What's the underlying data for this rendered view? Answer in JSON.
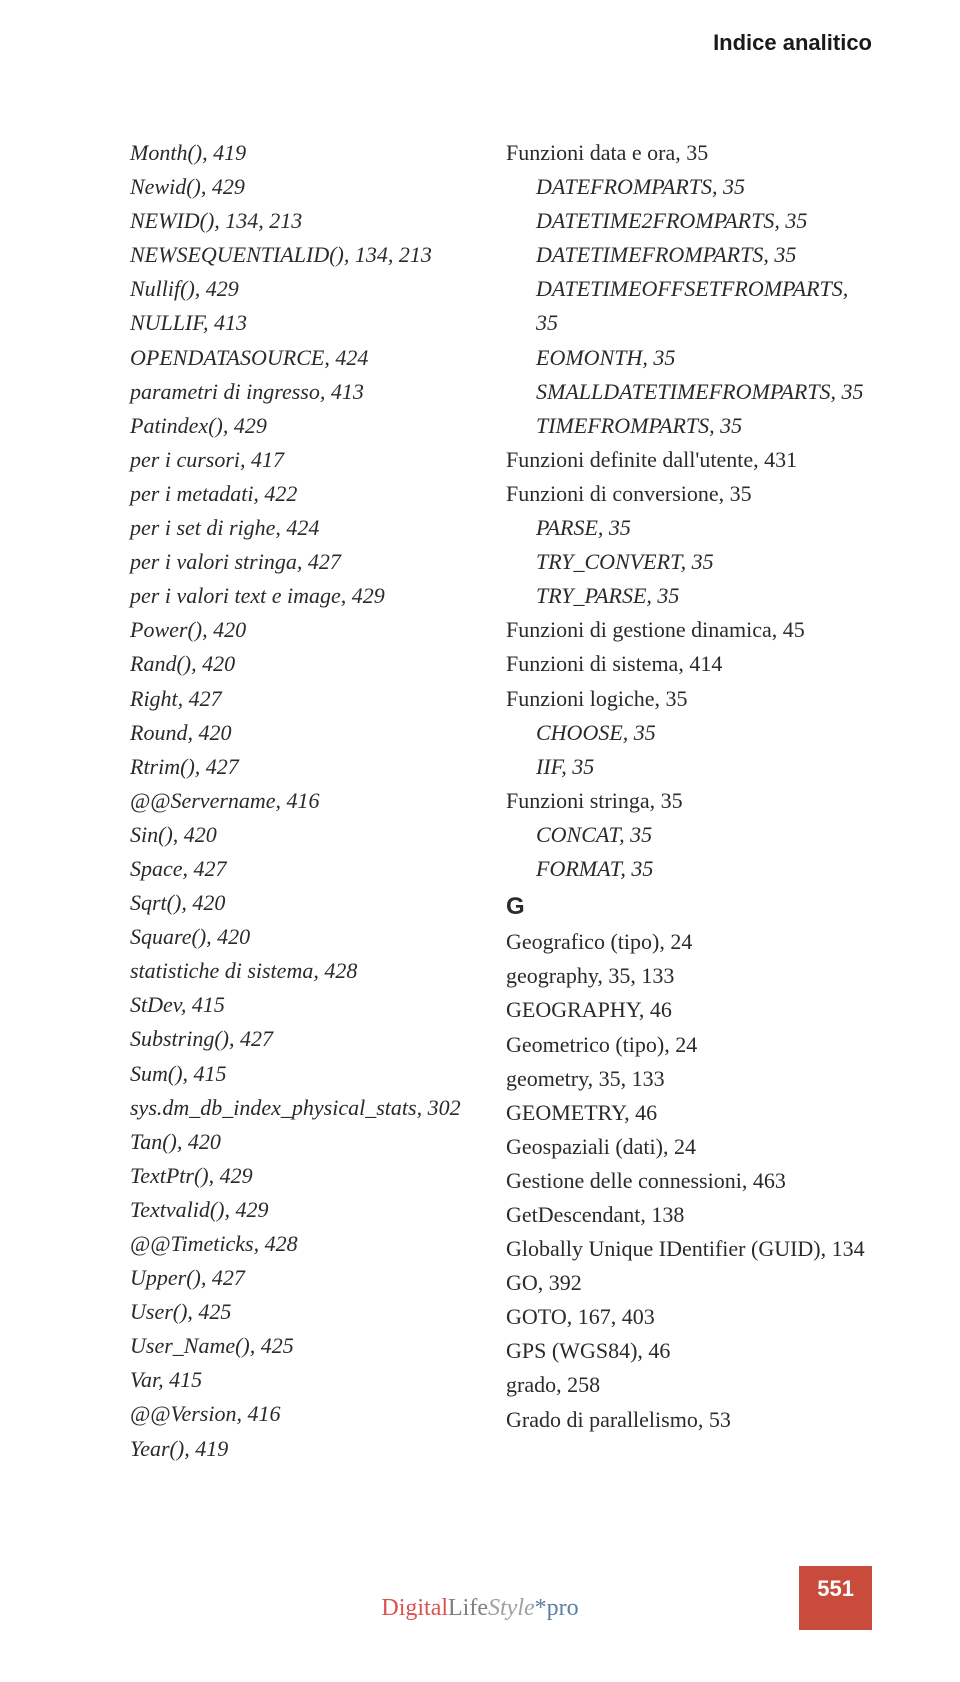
{
  "header": {
    "title": "Indice analitico"
  },
  "columns": {
    "left": [
      {
        "text": "Month(), 419",
        "indent": 1,
        "italic": true
      },
      {
        "text": "Newid(), 429",
        "indent": 1,
        "italic": true
      },
      {
        "text": "NEWID(), 134, 213",
        "indent": 1,
        "italic": true
      },
      {
        "text": "NEWSEQUENTIALID(), 134, 213",
        "indent": 1,
        "italic": true
      },
      {
        "text": "Nullif(), 429",
        "indent": 1,
        "italic": true
      },
      {
        "text": "NULLIF, 413",
        "indent": 1,
        "italic": true
      },
      {
        "text": "OPENDATASOURCE, 424",
        "indent": 1,
        "italic": true
      },
      {
        "text": "parametri di ingresso, 413",
        "indent": 1,
        "italic": true
      },
      {
        "text": "Patindex(), 429",
        "indent": 1,
        "italic": true
      },
      {
        "text": "per i cursori, 417",
        "indent": 1,
        "italic": true
      },
      {
        "text": "per i metadati, 422",
        "indent": 1,
        "italic": true
      },
      {
        "text": "per i set di righe, 424",
        "indent": 1,
        "italic": true
      },
      {
        "text": "per i valori stringa, 427",
        "indent": 1,
        "italic": true
      },
      {
        "text": "per i valori text e image, 429",
        "indent": 1,
        "italic": true
      },
      {
        "text": "Power(), 420",
        "indent": 1,
        "italic": true
      },
      {
        "text": "Rand(), 420",
        "indent": 1,
        "italic": true
      },
      {
        "text": "Right, 427",
        "indent": 1,
        "italic": true
      },
      {
        "text": "Round, 420",
        "indent": 1,
        "italic": true
      },
      {
        "text": "Rtrim(), 427",
        "indent": 1,
        "italic": true
      },
      {
        "text": "@@Servername, 416",
        "indent": 1,
        "italic": true
      },
      {
        "text": "Sin(), 420",
        "indent": 1,
        "italic": true
      },
      {
        "text": "Space, 427",
        "indent": 1,
        "italic": true
      },
      {
        "text": "Sqrt(), 420",
        "indent": 1,
        "italic": true
      },
      {
        "text": "Square(), 420",
        "indent": 1,
        "italic": true
      },
      {
        "text": "statistiche di sistema, 428",
        "indent": 1,
        "italic": true
      },
      {
        "text": "StDev, 415",
        "indent": 1,
        "italic": true
      },
      {
        "text": "Substring(), 427",
        "indent": 1,
        "italic": true
      },
      {
        "text": "Sum(), 415",
        "indent": 1,
        "italic": true
      },
      {
        "text": "sys.dm_db_index_physical_stats, 302",
        "indent": 1,
        "italic": true
      },
      {
        "text": "Tan(), 420",
        "indent": 1,
        "italic": true
      },
      {
        "text": "TextPtr(), 429",
        "indent": 1,
        "italic": true
      },
      {
        "text": "Textvalid(), 429",
        "indent": 1,
        "italic": true
      },
      {
        "text": "@@Timeticks, 428",
        "indent": 1,
        "italic": true
      },
      {
        "text": "Upper(), 427",
        "indent": 1,
        "italic": true
      },
      {
        "text": "User(), 425",
        "indent": 1,
        "italic": true
      },
      {
        "text": "User_Name(), 425",
        "indent": 1,
        "italic": true
      },
      {
        "text": "Var, 415",
        "indent": 1,
        "italic": true
      },
      {
        "text": "@@Version, 416",
        "indent": 1,
        "italic": true
      },
      {
        "text": "Year(), 419",
        "indent": 1,
        "italic": true
      }
    ],
    "right": [
      {
        "text": "Funzioni data e ora, 35",
        "indent": 0,
        "italic": false
      },
      {
        "text": "DATEFROMPARTS, 35",
        "indent": 1,
        "italic": true
      },
      {
        "text": "DATETIME2FROMPARTS, 35",
        "indent": 1,
        "italic": true
      },
      {
        "text": "DATETIMEFROMPARTS, 35",
        "indent": 1,
        "italic": true
      },
      {
        "text": "DATETIMEOFFSETFROMPARTS, 35",
        "indent": 1,
        "italic": true
      },
      {
        "text": "EOMONTH, 35",
        "indent": 1,
        "italic": true
      },
      {
        "text": "SMALLDATETIMEFROMPARTS, 35",
        "indent": 1,
        "italic": true
      },
      {
        "text": "TIMEFROMPARTS, 35",
        "indent": 1,
        "italic": true
      },
      {
        "text": "Funzioni definite dall'utente, 431",
        "indent": 0,
        "italic": false
      },
      {
        "text": "Funzioni di conversione, 35",
        "indent": 0,
        "italic": false
      },
      {
        "text": "PARSE, 35",
        "indent": 1,
        "italic": true
      },
      {
        "text": "TRY_CONVERT, 35",
        "indent": 1,
        "italic": true
      },
      {
        "text": "TRY_PARSE, 35",
        "indent": 1,
        "italic": true
      },
      {
        "text": "Funzioni di gestione dinamica, 45",
        "indent": 0,
        "italic": false
      },
      {
        "text": "Funzioni di sistema, 414",
        "indent": 0,
        "italic": false
      },
      {
        "text": "Funzioni logiche, 35",
        "indent": 0,
        "italic": false
      },
      {
        "text": "CHOOSE, 35",
        "indent": 1,
        "italic": true
      },
      {
        "text": "IIF, 35",
        "indent": 1,
        "italic": true
      },
      {
        "text": "Funzioni stringa, 35",
        "indent": 0,
        "italic": false
      },
      {
        "text": "CONCAT, 35",
        "indent": 1,
        "italic": true
      },
      {
        "text": "FORMAT, 35",
        "indent": 1,
        "italic": true
      },
      {
        "text": "G",
        "indent": 0,
        "italic": false,
        "section": true
      },
      {
        "text": "Geografico (tipo), 24",
        "indent": 0,
        "italic": false
      },
      {
        "text": "geography, 35, 133",
        "indent": 0,
        "italic": false
      },
      {
        "text": "GEOGRAPHY, 46",
        "indent": 0,
        "italic": false
      },
      {
        "text": "Geometrico (tipo), 24",
        "indent": 0,
        "italic": false
      },
      {
        "text": "geometry, 35, 133",
        "indent": 0,
        "italic": false
      },
      {
        "text": "GEOMETRY, 46",
        "indent": 0,
        "italic": false
      },
      {
        "text": "Geospaziali (dati), 24",
        "indent": 0,
        "italic": false
      },
      {
        "text": "Gestione delle connessioni, 463",
        "indent": 0,
        "italic": false
      },
      {
        "text": "GetDescendant, 138",
        "indent": 0,
        "italic": false
      },
      {
        "text": "Globally Unique IDentifier (GUID), 134",
        "indent": 0,
        "italic": false
      },
      {
        "text": "GO, 392",
        "indent": 0,
        "italic": false
      },
      {
        "text": "GOTO, 167, 403",
        "indent": 0,
        "italic": false
      },
      {
        "text": "GPS (WGS84), 46",
        "indent": 0,
        "italic": false
      },
      {
        "text": "grado, 258",
        "indent": 0,
        "italic": false
      },
      {
        "text": "Grado di parallelismo, 53",
        "indent": 0,
        "italic": false
      }
    ]
  },
  "footer": {
    "brand": {
      "d": "Digital",
      "life": "Life",
      "style": "Style",
      "star": "*",
      "pro": "pro"
    },
    "page": "551"
  }
}
